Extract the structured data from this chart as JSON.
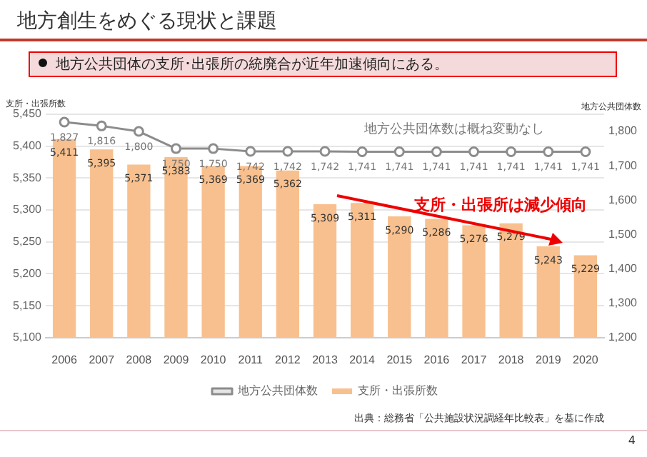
{
  "chart_data": {
    "type": "bar",
    "title": "地方創生をめぐる現状と課題",
    "subtitle": "地方公共団体の支所･出張所の統廃合が近年加速傾向にある。",
    "ylabel": "支所・出張所数",
    "y2label": "地方公共団体数",
    "categories": [
      "2006",
      "2007",
      "2008",
      "2009",
      "2010",
      "2011",
      "2012",
      "2013",
      "2014",
      "2015",
      "2016",
      "2017",
      "2018",
      "2019",
      "2020"
    ],
    "series": [
      {
        "name": "支所・出張所数",
        "color": "#f8c08e",
        "values": [
          5411,
          5395,
          5371,
          5383,
          5369,
          5369,
          5362,
          5309,
          5311,
          5290,
          5286,
          5276,
          5279,
          5243,
          5229
        ],
        "value_labels": [
          "5,411",
          "5,395",
          "5,371",
          "5,383",
          "5,369",
          "5,369",
          "5,362",
          "5,309",
          "5,311",
          "5,290",
          "5,286",
          "5,276",
          "5,279",
          "5,243",
          "5,229"
        ]
      },
      {
        "name": "地方公共団体数",
        "type": "line",
        "axis": "y2",
        "color": "#8c8c8c",
        "values": [
          1827,
          1816,
          1800,
          1750,
          1750,
          1742,
          1742,
          1742,
          1741,
          1741,
          1741,
          1741,
          1741,
          1741,
          1741
        ],
        "value_labels": [
          "1,827",
          "1,816",
          "1,800",
          "1,750",
          "1,750",
          "1,742",
          "1,742",
          "1,742",
          "1,741",
          "1,741",
          "1,741",
          "1,741",
          "1,741",
          "1,741",
          "1,741"
        ]
      }
    ],
    "ylim": [
      5100,
      5450
    ],
    "yticks": [
      {
        "value": 5100,
        "label": "5,100"
      },
      {
        "value": 5150,
        "label": "5,150"
      },
      {
        "value": 5200,
        "label": "5,200"
      },
      {
        "value": 5250,
        "label": "5,250"
      },
      {
        "value": 5300,
        "label": "5,300"
      },
      {
        "value": 5350,
        "label": "5,350"
      },
      {
        "value": 5400,
        "label": "5,400"
      },
      {
        "value": 5450,
        "label": "5,450"
      }
    ],
    "y2lim": [
      1200,
      1850
    ],
    "y2ticks": [
      {
        "value": 1200,
        "label": "1,200"
      },
      {
        "value": 1300,
        "label": "1,300"
      },
      {
        "value": 1400,
        "label": "1,400"
      },
      {
        "value": 1500,
        "label": "1,500"
      },
      {
        "value": 1600,
        "label": "1,600"
      },
      {
        "value": 1700,
        "label": "1,700"
      },
      {
        "value": 1800,
        "label": "1,800"
      }
    ],
    "grid": "y",
    "legend": "bottom",
    "marker": "circle",
    "line_style": "solid",
    "annotations": [
      "地方公共団体数は概ね変動なし",
      "支所・出張所は減少傾向",
      "出典：総務省「公共施設状況調経年比較表」を基に作成",
      "4"
    ]
  }
}
